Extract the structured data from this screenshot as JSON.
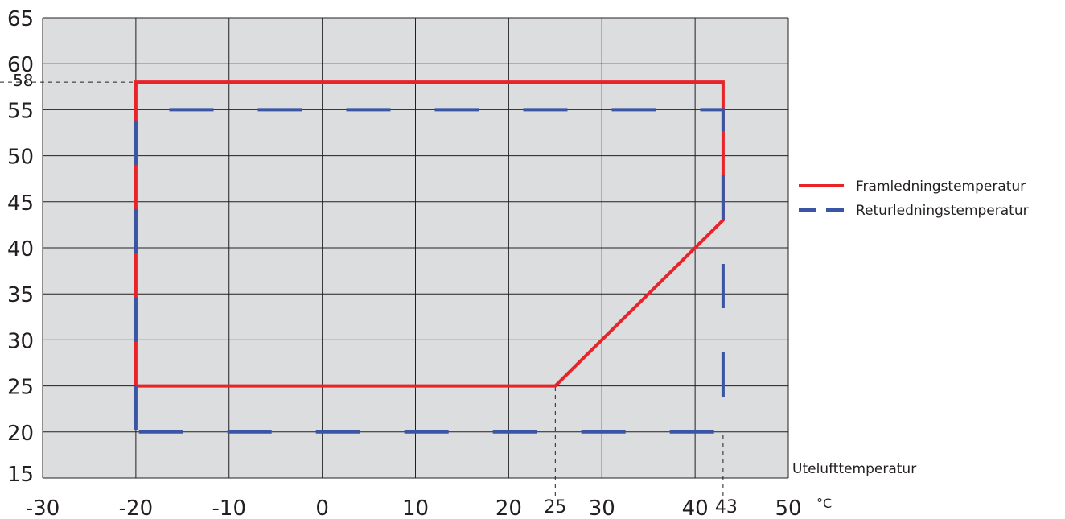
{
  "chart_data": {
    "type": "line",
    "title": "",
    "xlabel": "Utelufttemperatur",
    "x_unit": "°C",
    "ylabel": "",
    "xlim": [
      -30,
      50
    ],
    "ylim": [
      15,
      65
    ],
    "x_ticks": [
      -30,
      -20,
      -10,
      0,
      10,
      20,
      30,
      40,
      50
    ],
    "y_ticks": [
      15,
      20,
      25,
      30,
      35,
      40,
      45,
      50,
      55,
      60,
      65
    ],
    "extra_x_ticks": [
      25,
      43
    ],
    "extra_y_ticks": [
      58
    ],
    "grid": true,
    "legend_position": "right",
    "series": [
      {
        "name": "Framledningstemperatur",
        "color": "#e8232a",
        "style": "solid",
        "points": [
          [
            -20,
            25
          ],
          [
            -20,
            58
          ],
          [
            43,
            58
          ],
          [
            43,
            43
          ],
          [
            25,
            25
          ],
          [
            -20,
            25
          ]
        ]
      },
      {
        "name": "Returledningstemperatur",
        "color": "#3a55a4",
        "style": "dashed",
        "points": [
          [
            -20,
            20
          ],
          [
            -20,
            55
          ],
          [
            43,
            55
          ],
          [
            43,
            20
          ],
          [
            -20,
            20
          ]
        ]
      }
    ],
    "reference_lines": [
      {
        "points": [
          [
            -30,
            58
          ],
          [
            -20,
            58
          ]
        ]
      },
      {
        "points": [
          [
            25,
            15
          ],
          [
            25,
            25
          ]
        ]
      },
      {
        "points": [
          [
            43,
            15
          ],
          [
            43,
            20
          ]
        ]
      }
    ]
  }
}
